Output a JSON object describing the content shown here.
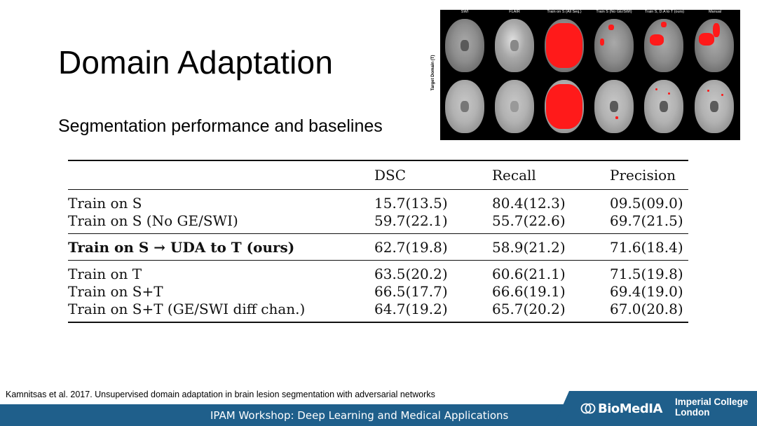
{
  "title": "Domain Adaptation",
  "subtitle": "Segmentation performance and baselines",
  "figure": {
    "columns": [
      "SWI",
      "FLAIR",
      "Train on S (All Seq.)",
      "Train S (No GE/SWI)",
      "Train S, D.A to T (ours)",
      "Manual"
    ],
    "row_label": "Target Domain (T)"
  },
  "table": {
    "headers": [
      "",
      "DSC",
      "Recall",
      "Precision"
    ],
    "groups": [
      [
        {
          "method": "Train on S",
          "dsc": "15.7(13.5)",
          "recall": "80.4(12.3)",
          "precision": "09.5(09.0)"
        },
        {
          "method": "Train on S (No GE/SWI)",
          "dsc": "59.7(22.1)",
          "recall": "55.7(22.6)",
          "precision": "69.7(21.5)"
        }
      ],
      [
        {
          "method": "Train on S → UDA to T (ours)",
          "dsc": "62.7(19.8)",
          "recall": "58.9(21.2)",
          "precision": "71.6(18.4)"
        }
      ],
      [
        {
          "method": "Train on T",
          "dsc": "63.5(20.2)",
          "recall": "60.6(21.1)",
          "precision": "71.5(19.8)"
        },
        {
          "method": "Train on S+T",
          "dsc": "66.5(17.7)",
          "recall": "66.6(19.1)",
          "precision": "69.4(19.0)"
        },
        {
          "method": "Train on S+T (GE/SWI diff chan.)",
          "dsc": "64.7(19.2)",
          "recall": "65.7(20.2)",
          "precision": "67.0(20.8)"
        }
      ]
    ]
  },
  "citation": "Kamnitsas et al. 2017. Unsupervised domain adaptation in brain lesion segmentation with adversarial networks",
  "footer": {
    "workshop": "IPAM Workshop: Deep Learning and Medical Applications",
    "logo_biomedia": "BioMedIA",
    "logo_imperial_line1": "Imperial College",
    "logo_imperial_line2": "London"
  },
  "colors": {
    "footer_bg": "#1f5f8b",
    "lesion": "#ff1a1a"
  }
}
